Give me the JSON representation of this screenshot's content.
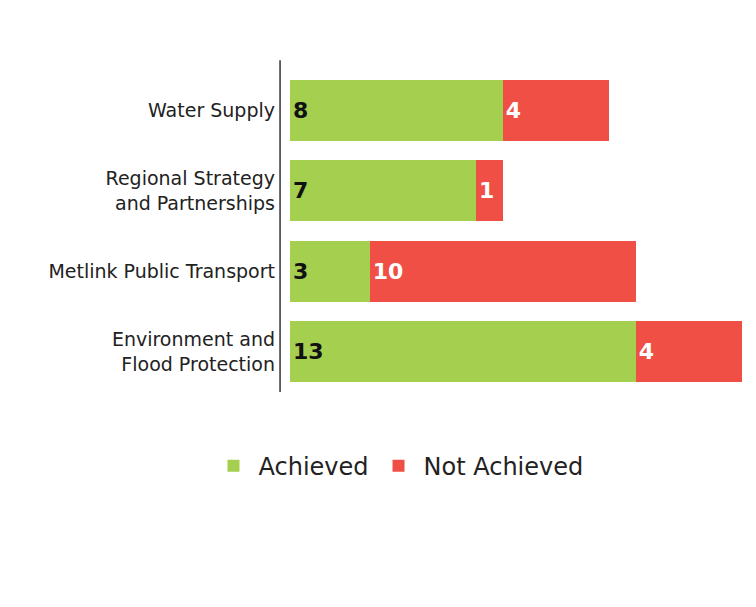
{
  "chart_data": {
    "type": "bar",
    "orientation": "horizontal",
    "stacked": true,
    "data_labels": true,
    "tick_labels": "y",
    "grid": false,
    "legend": "bottom",
    "categories": [
      "Water Supply",
      "Regional Strategy\nand Partnerships",
      "Metlink Public Transport",
      "Environment and\nFlood Protection"
    ],
    "xlim": [
      0,
      17
    ],
    "series": [
      {
        "name": "Achieved",
        "color": "#a5cf4f",
        "values": [
          8,
          7,
          3,
          13
        ]
      },
      {
        "name": "Not Achieved",
        "color": "#f04f45",
        "values": [
          4,
          1,
          10,
          4
        ]
      }
    ]
  }
}
